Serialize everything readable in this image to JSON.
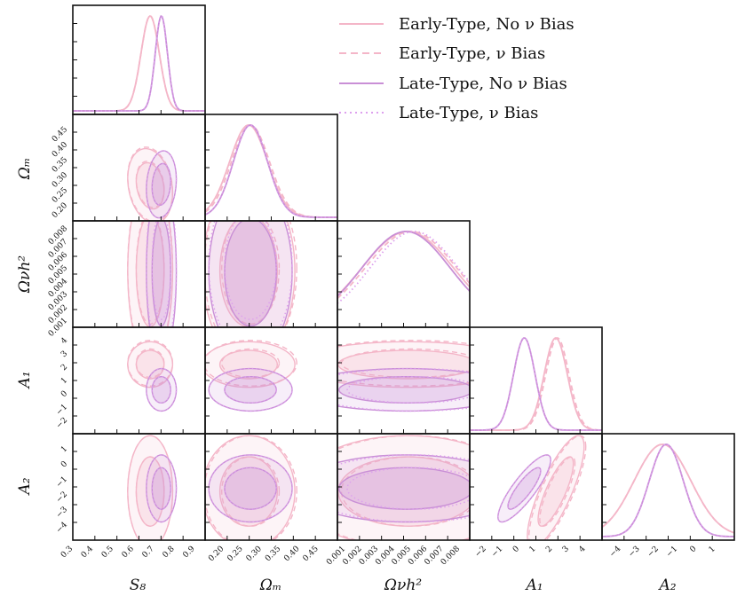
{
  "chart_data": {
    "type": "corner",
    "title": "",
    "parameters": [
      "S8",
      "Omega_m",
      "Omega_nu h^2",
      "A1",
      "A2"
    ],
    "axis_labels": {
      "S8": "S₈",
      "Omega_m": "Ωₘ",
      "Omega_nu h^2": "Ωνh²",
      "A1": "A₁",
      "A2": "A₂"
    },
    "ranges": {
      "S8": [
        0.3,
        0.95
      ],
      "Omega_m": [
        0.15,
        0.5
      ],
      "Omega_nu h^2": [
        0.0005,
        0.0086
      ],
      "A1": [
        -3,
        5
      ],
      "A2": [
        -5,
        2
      ]
    },
    "tick_labels": {
      "S8": [
        "0.3",
        "0.4",
        "0.5",
        "0.6",
        "0.7",
        "0.8",
        "0.9"
      ],
      "Omega_m": [
        "0.20",
        "0.25",
        "0.30",
        "0.35",
        "0.40",
        "0.45"
      ],
      "Omega_nu h^2": [
        "0.001",
        "0.002",
        "0.003",
        "0.004",
        "0.005",
        "0.006",
        "0.007",
        "0.008"
      ],
      "A1": [
        "−2",
        "−1",
        "0",
        "1",
        "2",
        "3",
        "4"
      ],
      "A2": [
        "−4",
        "−3",
        "−2",
        "−1",
        "0",
        "1"
      ]
    },
    "legend_position": "top-right",
    "series": [
      {
        "name": "Early-Type, No ν Bias",
        "color": "#f4b6c8",
        "linestyle": "solid",
        "means": {
          "S8": 0.68,
          "Omega_m": 0.265,
          "Omega_nu h^2": 0.0048,
          "A1": 2.2,
          "A2": -1.8
        },
        "sigmas": {
          "S8": 0.045,
          "Omega_m": 0.05,
          "Omega_nu h^2": 0.0028,
          "A1": 0.7,
          "A2": 1.5
        },
        "correlations": {
          "S8-Omega_m": -0.2,
          "A1-A2": 0.8
        }
      },
      {
        "name": "Early-Type, ν Bias",
        "color": "#f4b6c8",
        "linestyle": "dashed",
        "means": {
          "S8": 0.68,
          "Omega_m": 0.27,
          "Omega_nu h^2": 0.005,
          "A1": 2.3,
          "A2": -1.8
        },
        "sigmas": {
          "S8": 0.045,
          "Omega_m": 0.05,
          "Omega_nu h^2": 0.0028,
          "A1": 0.7,
          "A2": 1.5
        },
        "correlations": {
          "S8-Omega_m": -0.2,
          "A1-A2": 0.8
        }
      },
      {
        "name": "Late-Type, No ν Bias",
        "color": "#c98fd6",
        "linestyle": "solid",
        "means": {
          "S8": 0.735,
          "Omega_m": 0.27,
          "Omega_nu h^2": 0.0047,
          "A1": 0.3,
          "A2": -1.6
        },
        "sigmas": {
          "S8": 0.03,
          "Omega_m": 0.045,
          "Omega_nu h^2": 0.0027,
          "A1": 0.65,
          "A2": 0.9
        },
        "correlations": {
          "S8-Omega_m": 0.15,
          "A1-A2": 0.85
        }
      },
      {
        "name": "Late-Type, ν Bias",
        "color": "#dda0ee",
        "linestyle": "dotted",
        "means": {
          "S8": 0.735,
          "Omega_m": 0.27,
          "Omega_nu h^2": 0.0052,
          "A1": 0.3,
          "A2": -1.6
        },
        "sigmas": {
          "S8": 0.03,
          "Omega_m": 0.045,
          "Omega_nu h^2": 0.0027,
          "A1": 0.65,
          "A2": 0.9
        },
        "correlations": {
          "S8-Omega_m": 0.15,
          "A1-A2": 0.85
        }
      }
    ]
  }
}
